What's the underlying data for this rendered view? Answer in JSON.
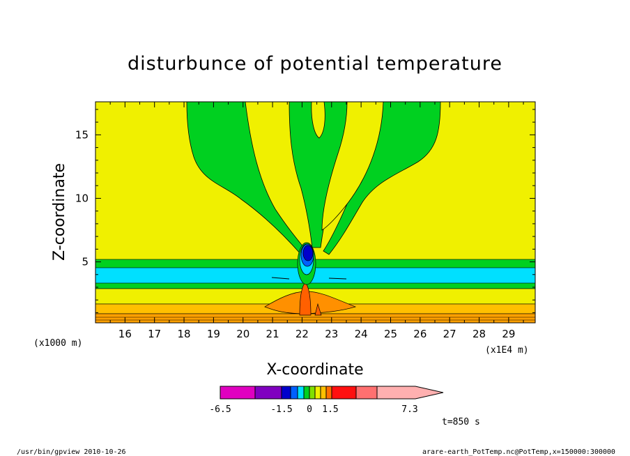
{
  "chart_data": {
    "type": "heatmap",
    "title": "disturbunce of potential temperature",
    "xlabel": "X-coordinate",
    "ylabel": "Z-coordinate",
    "x_unit": "(x1E4 m)",
    "y_unit": "(x1000 m)",
    "x_ticks": [
      "16",
      "17",
      "18",
      "19",
      "20",
      "21",
      "22",
      "23",
      "24",
      "25",
      "26",
      "27",
      "28",
      "29"
    ],
    "y_ticks": [
      "5",
      "10",
      "15"
    ],
    "xlim": [
      15.0,
      29.9
    ],
    "ylim": [
      0.2,
      17.6
    ],
    "colorbar": {
      "tick_labels": [
        "-6.5",
        "-1.5",
        "0",
        "1.5",
        "7.3"
      ],
      "colors": [
        "#e000c0",
        "#8000c0",
        "#0000cc",
        "#0060ff",
        "#00e0ff",
        "#00d020",
        "#80e000",
        "#f0f000",
        "#ffc000",
        "#ff7000",
        "#ff1010",
        "#ff7070",
        "#ffb0b0"
      ]
    },
    "time_label": "t=850 s"
  },
  "footer": {
    "program": "/usr/bin/gpview  2010-10-26",
    "source": "arare-earth_PotTemp.nc@PotTemp,x=150000:300000"
  }
}
